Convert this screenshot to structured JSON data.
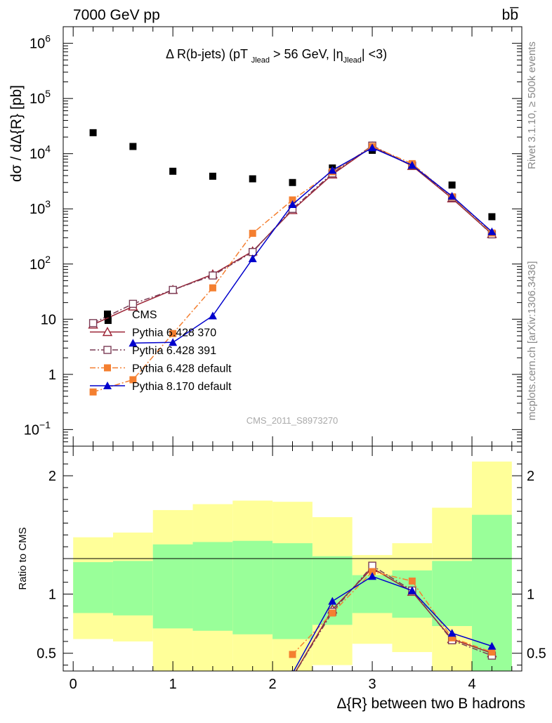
{
  "header": {
    "left": "7000 GeV pp",
    "right": "bb̅"
  },
  "side_labels": {
    "top": "Rivet 3.1.10, ≥ 500k events",
    "bottom": "mcplots.cern.ch [arXiv:1306.3436]"
  },
  "chart_data": [
    {
      "type": "scatter",
      "panel": "main",
      "title": "Δ R(b-jets) (pT_Jlead > 56 GeV, |η_Jlead| <3)",
      "ylabel": "dσ / dΔ{R} [pb]",
      "yscale": "log",
      "ylim": [
        0.05,
        2000000
      ],
      "xlim": [
        -0.1,
        4.5
      ],
      "y_ticks": [
        {
          "value": 1000000,
          "base": "10",
          "exp": "6"
        },
        {
          "value": 100000,
          "base": "10",
          "exp": "5"
        },
        {
          "value": 10000,
          "base": "10",
          "exp": "4"
        },
        {
          "value": 1000,
          "base": "10",
          "exp": "3"
        },
        {
          "value": 100,
          "base": "10",
          "exp": "2"
        },
        {
          "value": 10,
          "base": "10",
          "exp": ""
        },
        {
          "value": 1,
          "base": "1",
          "exp": ""
        },
        {
          "value": 0.1,
          "base": "10",
          "exp": "−1"
        }
      ],
      "watermark": "CMS_2011_S8973270",
      "legend_position": "lower-left",
      "series": [
        {
          "name": "CMS",
          "color": "#000000",
          "marker": "square",
          "x": [
            0.2,
            0.35,
            0.6,
            1.0,
            1.4,
            1.8,
            2.2,
            2.6,
            3.0,
            3.4,
            3.8,
            4.2
          ],
          "y": [
            24000,
            9.5,
            13500,
            4800,
            3900,
            3500,
            3000,
            5500,
            11500,
            6000,
            2700,
            720
          ]
        },
        {
          "name": "Pythia 6.428 370",
          "color": "#9b2335",
          "marker": "triangle-open",
          "line": "solid",
          "x": [
            0.2,
            0.6,
            1.0,
            1.4,
            1.8,
            2.2,
            2.6,
            3.0,
            3.4,
            3.8,
            4.2
          ],
          "y": [
            8,
            17,
            34,
            65,
            170,
            950,
            4200,
            13500,
            6000,
            1550,
            350
          ]
        },
        {
          "name": "Pythia 6.428 391",
          "color": "#7a3b55",
          "marker": "square-open",
          "line": "dashdot",
          "x": [
            0.2,
            0.6,
            1.0,
            1.4,
            1.8,
            2.2,
            2.6,
            3.0,
            3.4,
            3.8,
            4.2
          ],
          "y": [
            8.5,
            19,
            34,
            62,
            165,
            1000,
            4400,
            14000,
            6100,
            1600,
            345
          ]
        },
        {
          "name": "Pythia 6.428 default",
          "color": "#f47f30",
          "marker": "square",
          "line": "dashdot",
          "x": [
            0.2,
            0.6,
            1.0,
            1.4,
            1.8,
            2.2,
            2.6,
            3.0,
            3.4,
            3.8,
            4.2
          ],
          "y": [
            0.48,
            0.8,
            5.5,
            37,
            360,
            1450,
            4700,
            13500,
            6600,
            1650,
            365
          ]
        },
        {
          "name": "Pythia 8.170 default",
          "color": "#0000cc",
          "marker": "triangle",
          "line": "solid",
          "x": [
            0.6,
            1.0,
            1.4,
            1.8,
            2.2,
            2.6,
            3.0,
            3.4,
            3.8,
            4.2
          ],
          "y": [
            3.7,
            3.8,
            11.5,
            125,
            1200,
            5000,
            12800,
            6200,
            1700,
            385
          ]
        }
      ]
    },
    {
      "type": "line",
      "panel": "ratio",
      "ylabel": "Ratio to CMS",
      "xlabel": "Δ{R} between two B hadrons",
      "ylim": [
        0.35,
        2.25
      ],
      "xlim": [
        -0.1,
        4.5
      ],
      "x_ticks": [
        "0",
        "1",
        "2",
        "3",
        "4"
      ],
      "y_ticks": [
        {
          "value": 0.5,
          "label": "0.5"
        },
        {
          "value": 1,
          "label": "1"
        },
        {
          "value": 2,
          "label": "2"
        }
      ],
      "bands": {
        "bin_edges": [
          0.0,
          0.4,
          0.8,
          1.2,
          1.6,
          2.0,
          2.4,
          2.8,
          3.2,
          3.6,
          4.0,
          4.4
        ],
        "inner_lo": [
          0.84,
          0.82,
          0.71,
          0.69,
          0.66,
          0.62,
          0.74,
          0.84,
          0.8,
          0.73,
          0.35
        ],
        "inner_hi": [
          1.27,
          1.28,
          1.42,
          1.44,
          1.45,
          1.43,
          1.32,
          1.16,
          1.2,
          1.28,
          1.67
        ],
        "outer_lo": [
          0.62,
          0.6,
          0.35,
          0.35,
          0.35,
          0.35,
          0.4,
          0.58,
          0.51,
          0.35,
          0.35
        ],
        "outer_hi": [
          1.48,
          1.52,
          1.71,
          1.76,
          1.79,
          1.78,
          1.65,
          1.33,
          1.43,
          1.73,
          2.12
        ],
        "inner_color": "#99ff99",
        "outer_color": "#ffff99"
      },
      "series": [
        {
          "name": "Pythia 6.428 370",
          "color": "#9b2335",
          "x": [
            2.2,
            2.6,
            3.0,
            3.4,
            3.8,
            4.2
          ],
          "y": [
            0.3,
            0.87,
            1.22,
            1.02,
            0.62,
            0.5
          ]
        },
        {
          "name": "Pythia 6.428 391",
          "color": "#7a3b55",
          "x": [
            2.2,
            2.6,
            3.0,
            3.4,
            3.8,
            4.2
          ],
          "y": [
            0.3,
            0.85,
            1.24,
            1.03,
            0.61,
            0.48
          ]
        },
        {
          "name": "Pythia 6.428 default",
          "color": "#f47f30",
          "x": [
            2.2,
            2.6,
            3.0,
            3.4,
            3.8,
            4.2
          ],
          "y": [
            0.49,
            0.84,
            1.19,
            1.11,
            0.63,
            0.51
          ]
        },
        {
          "name": "Pythia 8.170 default",
          "color": "#0000cc",
          "x": [
            2.2,
            2.6,
            3.0,
            3.4,
            3.8,
            4.2
          ],
          "y": [
            0.33,
            0.94,
            1.15,
            1.03,
            0.67,
            0.56
          ]
        }
      ]
    }
  ]
}
